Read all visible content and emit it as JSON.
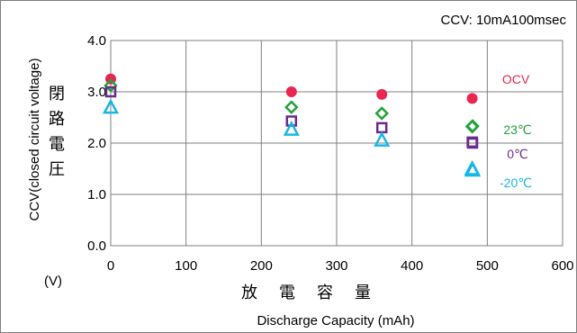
{
  "chart_data": {
    "type": "scatter",
    "annotation": "CCV: 10mA100msec",
    "ylabel": "CCV(closed circuit voltage)",
    "ylabel_jp": [
      "閉",
      "路",
      "電",
      "圧"
    ],
    "yunit": "(V)",
    "xlabel_jp": [
      "放",
      "電",
      "容",
      "量"
    ],
    "xlabel": "Discharge Capacity (mAh)",
    "xlim": [
      0,
      600
    ],
    "ylim": [
      0.0,
      4.0
    ],
    "xticks": [
      "0",
      "100",
      "200",
      "300",
      "400",
      "500",
      "600"
    ],
    "yticks": [
      "0.0",
      "1.0",
      "2.0",
      "3.0",
      "4.0"
    ],
    "grid": true,
    "x": [
      0,
      240,
      360,
      480
    ],
    "series": [
      {
        "name": "OCV",
        "marker": "circle",
        "color": "#e8264f",
        "values": [
          3.25,
          3.0,
          2.95,
          2.87
        ]
      },
      {
        "name": "23℃",
        "marker": "diamond",
        "color": "#22a33a",
        "values": [
          3.12,
          2.7,
          2.58,
          2.32
        ]
      },
      {
        "name": "0℃",
        "marker": "square",
        "color": "#6a2c8c",
        "values": [
          3.0,
          2.43,
          2.3,
          2.02
        ]
      },
      {
        "name": "-20℃",
        "marker": "triangle",
        "color": "#17b7e3",
        "values": [
          2.7,
          2.27,
          2.06,
          1.5
        ]
      }
    ]
  }
}
